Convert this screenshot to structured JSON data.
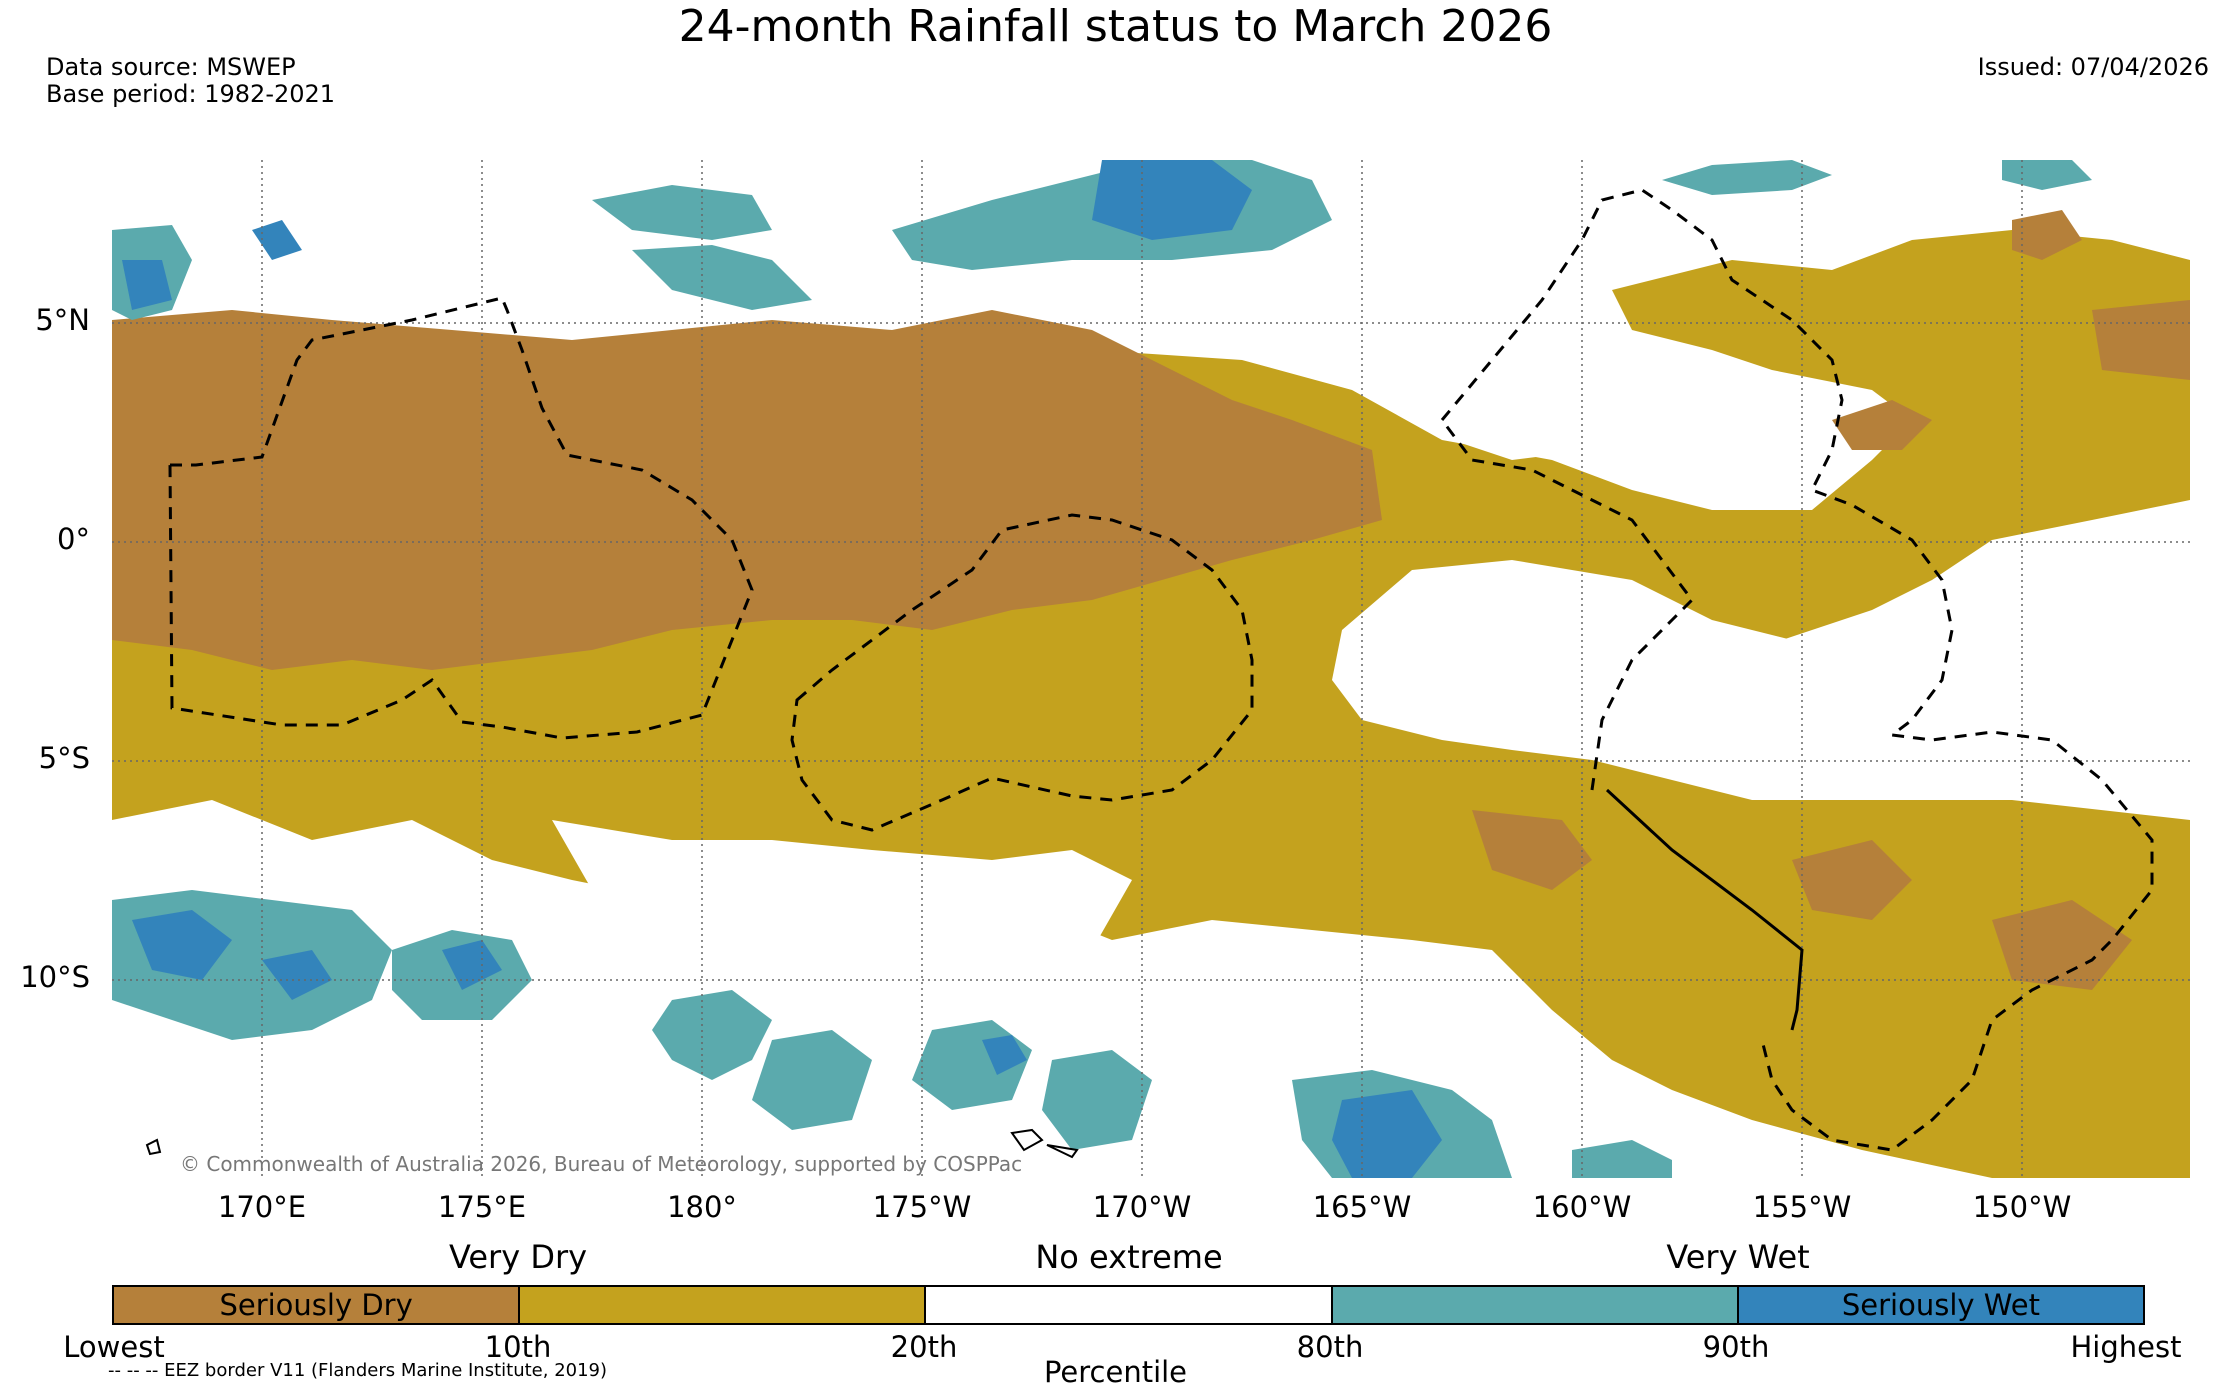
{
  "title": "24-month Rainfall status to March 2026",
  "data_source": "Data source: MSWEP",
  "base_period": "Base period: 1982-2021",
  "issued": "Issued: 07/04/2026",
  "copyright": "© Commonwealth of Australia 2026, Bureau of Meteorology, supported by COSPPac",
  "lat_labels": [
    "5°N",
    "0°",
    "5°S",
    "10°S"
  ],
  "lon_labels": [
    "170°E",
    "175°E",
    "180°",
    "175°W",
    "170°W",
    "165°W",
    "160°W",
    "155°W",
    "150°W"
  ],
  "legend": {
    "groups": [
      "Very Dry",
      "No extreme",
      "Very Wet"
    ],
    "boxes": [
      {
        "label": "Seriously Dry",
        "color": "#b5803a"
      },
      {
        "label": "",
        "color": "#c4a21e"
      },
      {
        "label": "",
        "color": "#ffffff"
      },
      {
        "label": "",
        "color": "#5baaad"
      },
      {
        "label": "Seriously Wet",
        "color": "#3384bb"
      }
    ],
    "ticks": [
      "Lowest",
      "10th",
      "20th",
      "80th",
      "90th",
      "Highest"
    ],
    "axis_title": "Percentile",
    "eez_note": "-- -- -- EEZ border V11 (Flanders Marine Institute, 2019)"
  },
  "colors": {
    "seriously_dry": "#b5803a",
    "very_dry": "#c4a21e",
    "very_wet": "#5baaad",
    "seriously_wet": "#3384bb"
  }
}
